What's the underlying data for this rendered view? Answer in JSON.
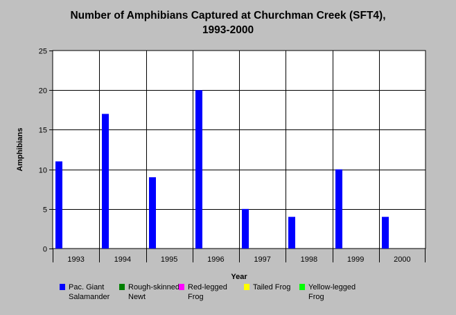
{
  "colors": {
    "background": "#c0c0c0",
    "plot_background": "#ffffff",
    "grid": "#000000"
  },
  "chart_data": {
    "type": "bar",
    "title_lines": [
      "Number of Amphibians Captured at Churchman Creek (SFT4),",
      "1993-2000"
    ],
    "xlabel": "Year",
    "ylabel": "Amphibians",
    "ylim": [
      0,
      25
    ],
    "yticks": [
      0,
      5,
      10,
      15,
      20,
      25
    ],
    "categories": [
      "1993",
      "1994",
      "1995",
      "1996",
      "1997",
      "1998",
      "1999",
      "2000"
    ],
    "grid": true,
    "legend_position": "bottom",
    "series": [
      {
        "name": "Pac. Giant Salamander",
        "color": "#0000ff",
        "values": [
          11,
          17,
          9,
          20,
          5,
          4,
          10,
          4
        ]
      },
      {
        "name": "Rough-skinned Newt",
        "color": "#008000",
        "values": [
          0,
          0,
          0,
          0,
          0,
          0,
          0,
          0
        ]
      },
      {
        "name": "Red-legged Frog",
        "color": "#ff00ff",
        "values": [
          0,
          0,
          0,
          0,
          0,
          0,
          0,
          0
        ]
      },
      {
        "name": "Tailed Frog",
        "color": "#ffff00",
        "values": [
          0,
          0,
          0,
          0,
          0,
          0,
          0,
          0
        ]
      },
      {
        "name": "Yellow-legged Frog",
        "color": "#00ff00",
        "values": [
          0,
          0,
          0,
          0,
          0,
          0,
          0,
          0
        ]
      }
    ]
  }
}
